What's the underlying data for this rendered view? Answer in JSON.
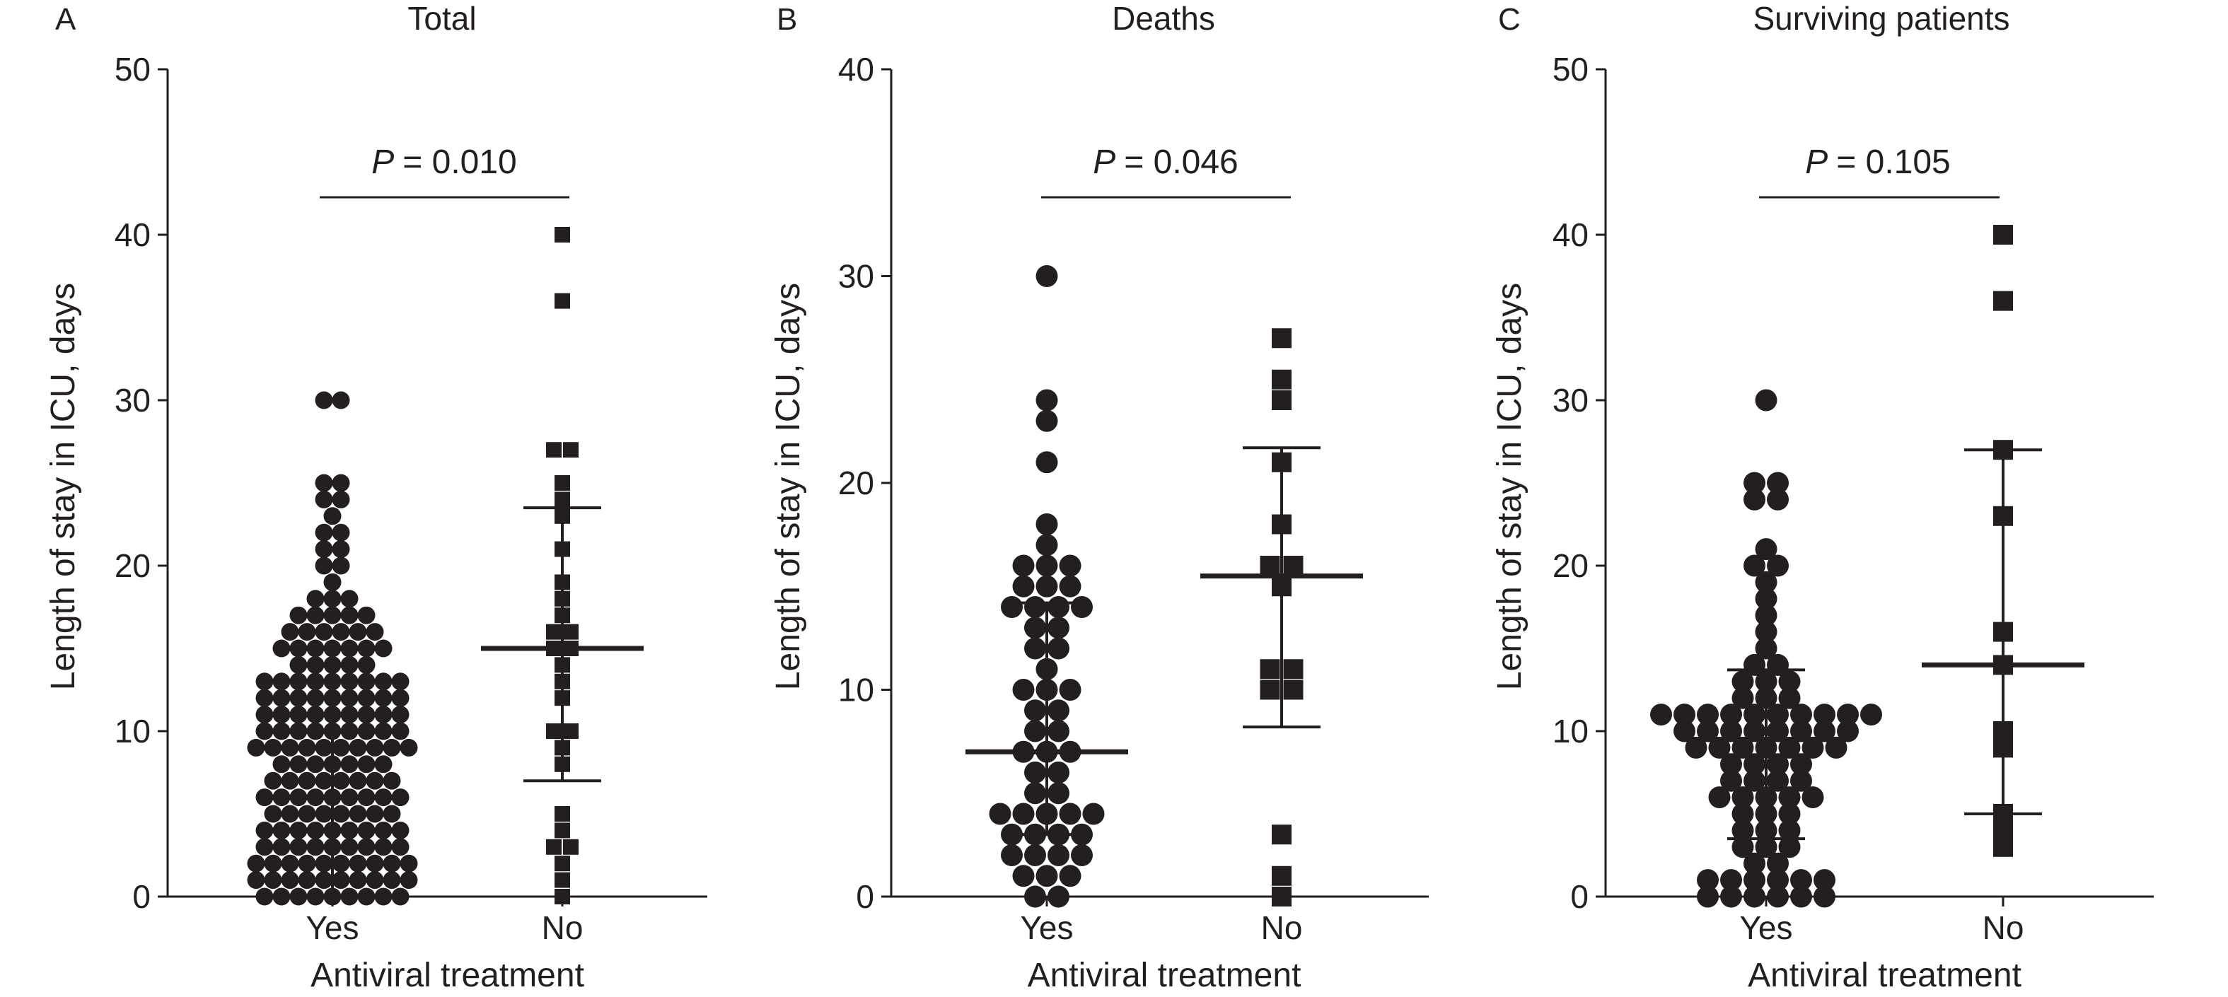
{
  "chart_data": [
    {
      "type": "scatter",
      "panel": "A",
      "title": "Total",
      "xlabel": "Antiviral treatment",
      "ylabel": "Length of stay in ICU, days",
      "ylim": [
        0,
        50
      ],
      "yticks": [
        0,
        10,
        20,
        30,
        40,
        50
      ],
      "categories": [
        "Yes",
        "No"
      ],
      "annotation": {
        "p_label": "P",
        "p_value": "= 0.010"
      },
      "series": [
        {
          "category": "Yes",
          "marker": "circle",
          "summary": {
            "center": 9,
            "lower": 0,
            "upper": 14
          },
          "values": [
            0,
            0,
            0,
            0,
            0,
            0,
            0,
            0,
            0,
            1,
            1,
            1,
            1,
            1,
            1,
            1,
            1,
            1,
            1,
            2,
            2,
            2,
            2,
            2,
            2,
            2,
            2,
            2,
            2,
            3,
            3,
            3,
            3,
            3,
            3,
            3,
            3,
            3,
            4,
            4,
            4,
            4,
            4,
            4,
            4,
            4,
            4,
            5,
            5,
            5,
            5,
            5,
            5,
            5,
            5,
            6,
            6,
            6,
            6,
            6,
            6,
            6,
            6,
            6,
            7,
            7,
            7,
            7,
            7,
            7,
            7,
            7,
            8,
            8,
            8,
            8,
            8,
            8,
            8,
            9,
            9,
            9,
            9,
            9,
            9,
            9,
            9,
            9,
            9,
            10,
            10,
            10,
            10,
            10,
            10,
            10,
            10,
            10,
            11,
            11,
            11,
            11,
            11,
            11,
            11,
            11,
            11,
            12,
            12,
            12,
            12,
            12,
            12,
            12,
            12,
            12,
            13,
            13,
            13,
            13,
            13,
            13,
            13,
            13,
            13,
            14,
            14,
            14,
            14,
            14,
            15,
            15,
            15,
            15,
            15,
            15,
            15,
            16,
            16,
            16,
            16,
            16,
            16,
            17,
            17,
            17,
            17,
            17,
            18,
            18,
            18,
            19,
            20,
            20,
            21,
            21,
            22,
            22,
            23,
            24,
            24,
            25,
            25,
            30,
            30
          ]
        },
        {
          "category": "No",
          "marker": "square",
          "summary": {
            "center": 15,
            "lower": 7,
            "upper": 23.5
          },
          "values": [
            0,
            1,
            2,
            3,
            3,
            4,
            5,
            8,
            9,
            10,
            10,
            12,
            13,
            14,
            15,
            15,
            16,
            16,
            17,
            18,
            19,
            21,
            23,
            24,
            25,
            27,
            27,
            36,
            40
          ]
        }
      ]
    },
    {
      "type": "scatter",
      "panel": "B",
      "title": "Deaths",
      "xlabel": "Antiviral treatment",
      "ylabel": "Length of stay in ICU, days",
      "ylim": [
        0,
        40
      ],
      "yticks": [
        0,
        10,
        20,
        30,
        40
      ],
      "categories": [
        "Yes",
        "No"
      ],
      "annotation": {
        "p_label": "P",
        "p_value": "= 0.046"
      },
      "series": [
        {
          "category": "Yes",
          "marker": "circle",
          "summary": {
            "center": 7,
            "lower": 3,
            "upper": 14.2
          },
          "values": [
            0,
            0,
            1,
            1,
            1,
            2,
            2,
            2,
            2,
            3,
            3,
            3,
            3,
            4,
            4,
            4,
            4,
            4,
            5,
            5,
            6,
            6,
            7,
            7,
            7,
            8,
            8,
            9,
            9,
            10,
            10,
            10,
            11,
            12,
            12,
            13,
            13,
            14,
            14,
            14,
            14,
            15,
            15,
            15,
            16,
            16,
            16,
            17,
            18,
            21,
            23,
            24,
            30
          ]
        },
        {
          "category": "No",
          "marker": "square",
          "summary": {
            "center": 15.5,
            "lower": 8.2,
            "upper": 21.7
          },
          "values": [
            0,
            1,
            3,
            10,
            10,
            11,
            11,
            15,
            16,
            16,
            18,
            21,
            24,
            25,
            27
          ]
        }
      ]
    },
    {
      "type": "scatter",
      "panel": "C",
      "title": "Surviving patients",
      "xlabel": "Antiviral treatment",
      "ylabel": "Length of stay in ICU, days",
      "ylim": [
        0,
        50
      ],
      "yticks": [
        0,
        10,
        20,
        30,
        40,
        50
      ],
      "categories": [
        "Yes",
        "No"
      ],
      "annotation": {
        "p_label": "P",
        "p_value": "= 0.105"
      },
      "series": [
        {
          "category": "Yes",
          "marker": "circle",
          "summary": {
            "center": 9.5,
            "lower": 3.5,
            "upper": 13.7
          },
          "values": [
            0,
            0,
            0,
            0,
            0,
            0,
            1,
            1,
            1,
            1,
            1,
            1,
            2,
            2,
            3,
            3,
            3,
            4,
            4,
            4,
            5,
            5,
            5,
            6,
            6,
            6,
            6,
            6,
            7,
            7,
            7,
            7,
            8,
            8,
            8,
            8,
            9,
            9,
            9,
            9,
            9,
            9,
            9,
            10,
            10,
            10,
            10,
            10,
            10,
            10,
            10,
            11,
            11,
            11,
            11,
            11,
            11,
            11,
            11,
            11,
            11,
            12,
            12,
            12,
            13,
            13,
            13,
            14,
            14,
            15,
            16,
            17,
            18,
            19,
            20,
            20,
            21,
            24,
            24,
            25,
            25,
            30
          ]
        },
        {
          "category": "No",
          "marker": "square",
          "summary": {
            "center": 14,
            "lower": 5,
            "upper": 27
          },
          "values": [
            3,
            4,
            5,
            9,
            10,
            14,
            16,
            23,
            27,
            36,
            40
          ]
        }
      ]
    }
  ]
}
